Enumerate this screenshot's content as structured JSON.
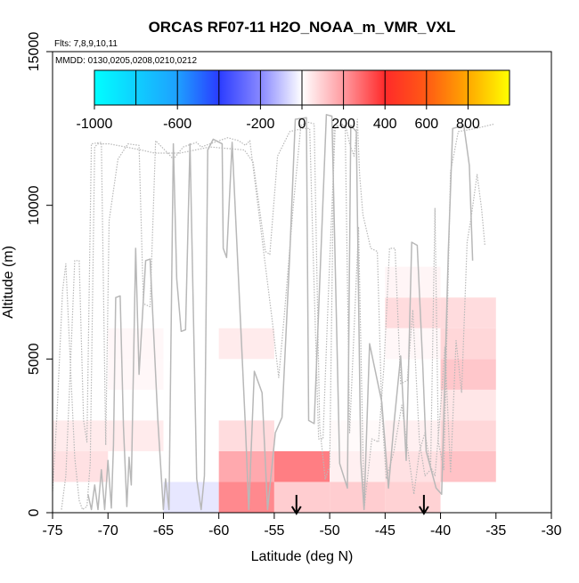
{
  "chart_data": {
    "type": "heatmap",
    "title": "ORCAS RF07-11 H2O_NOAA_m_VMR_VXL",
    "annotations": {
      "flights": "Flts: 7,8,9,10,11",
      "dates": "MMDD: 0130,0205,0208,0210,0212"
    },
    "xlabel": "Latitude (deg N)",
    "ylabel": "Altitude (m)",
    "xlim": [
      -75,
      -30
    ],
    "ylim": [
      0,
      15000
    ],
    "x_ticks": [
      -75,
      -70,
      -65,
      -60,
      -55,
      -50,
      -45,
      -40,
      -35,
      -30
    ],
    "x_tick_labels": [
      "-75",
      "-70",
      "-65",
      "-60",
      "-55",
      "-50",
      "-45",
      "-40",
      "-35",
      "-30"
    ],
    "y_ticks": [
      0,
      5000,
      10000,
      15000
    ],
    "y_tick_labels": [
      "0",
      "5000",
      "10000",
      "15000"
    ],
    "colorbar": {
      "min": -1000,
      "max": 1000,
      "tick_values": [
        -1000,
        -600,
        -200,
        0,
        200,
        400,
        600,
        800
      ],
      "tick_labels": [
        "-1000",
        "-600",
        "-200",
        "0",
        "200",
        "400",
        "600",
        "800"
      ],
      "divisions": [
        -800,
        -600,
        -400,
        -200,
        0,
        200,
        400,
        600,
        800
      ],
      "stops": [
        {
          "v": -1000,
          "c": "#00ffff"
        },
        {
          "v": -600,
          "c": "#1ea0ff"
        },
        {
          "v": -400,
          "c": "#2a3cff"
        },
        {
          "v": -200,
          "c": "#8888ff"
        },
        {
          "v": 0,
          "c": "#ffffff"
        },
        {
          "v": 200,
          "c": "#ff9aa0"
        },
        {
          "v": 400,
          "c": "#ff2a2a"
        },
        {
          "v": 600,
          "c": "#ff5a14"
        },
        {
          "v": 800,
          "c": "#ffa800"
        },
        {
          "v": 1000,
          "c": "#ffff00"
        }
      ]
    },
    "cells": [
      {
        "x0": -75,
        "x1": -70,
        "y0": 1000,
        "y1": 2000,
        "v": 60
      },
      {
        "x0": -75,
        "x1": -70,
        "y0": 2000,
        "y1": 3000,
        "v": 40
      },
      {
        "x0": -70,
        "x1": -65,
        "y0": 2000,
        "y1": 3000,
        "v": 40
      },
      {
        "x0": -70,
        "x1": -65,
        "y0": 4000,
        "y1": 5000,
        "v": 15
      },
      {
        "x0": -70,
        "x1": -65,
        "y0": 5000,
        "y1": 6000,
        "v": 15
      },
      {
        "x0": -65,
        "x1": -60,
        "y0": 0,
        "y1": 1000,
        "v": -40
      },
      {
        "x0": -60,
        "x1": -55,
        "y0": 0,
        "y1": 1000,
        "v": 230
      },
      {
        "x0": -60,
        "x1": -55,
        "y0": 1000,
        "y1": 2000,
        "v": 170
      },
      {
        "x0": -60,
        "x1": -55,
        "y0": 2000,
        "y1": 3000,
        "v": 70
      },
      {
        "x0": -60,
        "x1": -55,
        "y0": 5000,
        "y1": 6000,
        "v": 40
      },
      {
        "x0": -55,
        "x1": -50,
        "y0": 1000,
        "y1": 2000,
        "v": 250
      },
      {
        "x0": -55,
        "x1": -50,
        "y0": 0,
        "y1": 1000,
        "v": 100
      },
      {
        "x0": -50,
        "x1": -45,
        "y0": 0,
        "y1": 1000,
        "v": 100
      },
      {
        "x0": -50,
        "x1": -45,
        "y0": 1000,
        "y1": 2000,
        "v": 30
      },
      {
        "x0": -50,
        "x1": -45,
        "y0": 2000,
        "y1": 3000,
        "v": 10
      },
      {
        "x0": -45,
        "x1": -40,
        "y0": 0,
        "y1": 1000,
        "v": 90
      },
      {
        "x0": -45,
        "x1": -40,
        "y0": 1000,
        "y1": 2000,
        "v": 60
      },
      {
        "x0": -45,
        "x1": -40,
        "y0": 2000,
        "y1": 3000,
        "v": 30
      },
      {
        "x0": -45,
        "x1": -40,
        "y0": 6000,
        "y1": 7000,
        "v": 70
      },
      {
        "x0": -45,
        "x1": -40,
        "y0": 7000,
        "y1": 8000,
        "v": 20
      },
      {
        "x0": -45,
        "x1": -40,
        "y0": 5000,
        "y1": 6000,
        "v": 15
      },
      {
        "x0": -40,
        "x1": -35,
        "y0": 1000,
        "y1": 2000,
        "v": 120
      },
      {
        "x0": -40,
        "x1": -35,
        "y0": 2000,
        "y1": 3000,
        "v": 80
      },
      {
        "x0": -40,
        "x1": -35,
        "y0": 3000,
        "y1": 4000,
        "v": 50
      },
      {
        "x0": -40,
        "x1": -35,
        "y0": 4000,
        "y1": 5000,
        "v": 110
      },
      {
        "x0": -40,
        "x1": -35,
        "y0": 5000,
        "y1": 6000,
        "v": 80
      },
      {
        "x0": -40,
        "x1": -35,
        "y0": 6000,
        "y1": 7000,
        "v": 70
      }
    ],
    "arrows_x": [
      -53,
      -41.5
    ],
    "tracks": [
      [
        [
          -71.8,
          600
        ],
        [
          -71.5,
          100
        ],
        [
          -71.2,
          900
        ],
        [
          -70.9,
          100
        ],
        [
          -70.6,
          1400
        ],
        [
          -70.3,
          100
        ],
        [
          -70,
          1700
        ],
        [
          -69.7,
          150
        ],
        [
          -69.5,
          2200
        ],
        [
          -69.3,
          7000
        ],
        [
          -68.9,
          7050
        ],
        [
          -68.6,
          2800
        ],
        [
          -68.3,
          200
        ],
        [
          -68.1,
          1800
        ],
        [
          -67.9,
          900
        ],
        [
          -67.5,
          8600
        ],
        [
          -67.2,
          4500
        ],
        [
          -66.6,
          8200
        ],
        [
          -66.2,
          8250
        ],
        [
          -65.5,
          3000
        ],
        [
          -65,
          100
        ],
        [
          -64.8,
          1100
        ],
        [
          -64.5,
          100
        ],
        [
          -64.1,
          12000
        ],
        [
          -63.8,
          7600
        ],
        [
          -63.4,
          5900
        ],
        [
          -63,
          5950
        ],
        [
          -62.6,
          12000
        ],
        [
          -62,
          1100
        ],
        [
          -61.6,
          100
        ],
        [
          -61.3,
          1200
        ],
        [
          -61,
          11800
        ],
        [
          -60.5,
          12150
        ],
        [
          -59.7,
          12000
        ],
        [
          -59.6,
          8600
        ],
        [
          -59.3,
          8300
        ],
        [
          -58.8,
          12050
        ],
        [
          -57.6,
          2800
        ],
        [
          -57.3,
          100
        ],
        [
          -56.8,
          4600
        ],
        [
          -56.1,
          3900
        ],
        [
          -55.6,
          100
        ],
        [
          -54.9,
          2600
        ],
        [
          -54.3,
          3100
        ],
        [
          -53.6,
          8400
        ],
        [
          -53.1,
          12800
        ],
        [
          -52.1,
          12850
        ],
        [
          -51.9,
          3000
        ],
        [
          -51.4,
          2900
        ],
        [
          -50.3,
          12950
        ],
        [
          -49.8,
          12900
        ],
        [
          -49.1,
          1600
        ],
        [
          -48.4,
          800
        ],
        [
          -48.1,
          12600
        ],
        [
          -47.6,
          12400
        ],
        [
          -47.2,
          1700
        ],
        [
          -46.9,
          100
        ],
        [
          -46.4,
          5500
        ],
        [
          -45.3,
          3600
        ],
        [
          -44.7,
          800
        ],
        [
          -44.2,
          2900
        ],
        [
          -43.6,
          5100
        ],
        [
          -43.1,
          1700
        ],
        [
          -42.6,
          8800
        ],
        [
          -42.1,
          8700
        ],
        [
          -41.6,
          4800
        ],
        [
          -41.3,
          2000
        ],
        [
          -40.4,
          800
        ],
        [
          -39.9,
          600
        ],
        [
          -39.3,
          8500
        ],
        [
          -38.9,
          12500
        ],
        [
          -37.9,
          12600
        ],
        [
          -37.4,
          11300
        ],
        [
          -37.1,
          8200
        ]
      ],
      [
        [
          -74.2,
          100
        ],
        [
          -73.8,
          1200
        ],
        [
          -73.5,
          3800
        ],
        [
          -73,
          8200
        ],
        [
          -72.6,
          8200
        ],
        [
          -72.2,
          3000
        ],
        [
          -71.9,
          2300
        ],
        [
          -71.5,
          12000
        ],
        [
          -70.6,
          12050
        ],
        [
          -70.2,
          2200
        ],
        [
          -69.9,
          9500
        ],
        [
          -69.1,
          11500
        ],
        [
          -68.2,
          12000
        ],
        [
          -67.2,
          11950
        ],
        [
          -66.8,
          6800
        ],
        [
          -66.2,
          6700
        ],
        [
          -65.7,
          12100
        ],
        [
          -64.6,
          11700
        ],
        [
          -64.1,
          11500
        ],
        [
          -63.2,
          11900
        ],
        [
          -62,
          12050
        ],
        [
          -61.6,
          11900
        ],
        [
          -60.4,
          12050
        ],
        [
          -59.2,
          12200
        ],
        [
          -58.2,
          12100
        ],
        [
          -57.6,
          11950
        ],
        [
          -57.2,
          12100
        ],
        [
          -55.2,
          6300
        ],
        [
          -54.6,
          4400
        ],
        [
          -54.1,
          6400
        ],
        [
          -53.3,
          9900
        ],
        [
          -52.6,
          12600
        ],
        [
          -51.9,
          12700
        ],
        [
          -51.4,
          12650
        ],
        [
          -50.9,
          2800
        ],
        [
          -50.4,
          1100
        ],
        [
          -50,
          1500
        ],
        [
          -49.6,
          12600
        ],
        [
          -48.6,
          12600
        ],
        [
          -48.2,
          2600
        ],
        [
          -47.4,
          9300
        ],
        [
          -46.9,
          100
        ],
        [
          -46.2,
          2400
        ],
        [
          -45.6,
          2300
        ],
        [
          -45.1,
          4800
        ],
        [
          -44.6,
          8600
        ],
        [
          -44.1,
          8600
        ],
        [
          -43.6,
          4200
        ],
        [
          -43,
          4300
        ],
        [
          -42.5,
          6600
        ],
        [
          -41.9,
          2300
        ],
        [
          -41.4,
          1200
        ],
        [
          -40.9,
          1400
        ],
        [
          -40.5,
          9900
        ],
        [
          -40.2,
          2300
        ],
        [
          -39.7,
          1400
        ],
        [
          -39.1,
          11100
        ],
        [
          -38.4,
          12400
        ],
        [
          -36.8,
          12500
        ],
        [
          -35.1,
          12650
        ]
      ],
      [
        [
          -75,
          700
        ],
        [
          -74.6,
          3200
        ],
        [
          -74.1,
          7200
        ],
        [
          -73.8,
          8100
        ],
        [
          -73.4,
          4900
        ],
        [
          -73,
          1800
        ],
        [
          -72.6,
          400
        ],
        [
          -72.3,
          100
        ],
        [
          -71.9,
          200
        ],
        [
          -71.6,
          1600
        ],
        [
          -71.2,
          11900
        ],
        [
          -70.9,
          12000
        ],
        [
          -69.9,
          12000
        ],
        [
          -67,
          11800
        ],
        [
          -65.8,
          11700
        ],
        [
          -63.5,
          11700
        ],
        [
          -60.8,
          11900
        ],
        [
          -57.7,
          11800
        ],
        [
          -56.9,
          11400
        ],
        [
          -55.8,
          8500
        ],
        [
          -55.4,
          8400
        ],
        [
          -54.7,
          11600
        ],
        [
          -53.6,
          12400
        ],
        [
          -52.4,
          12500
        ],
        [
          -51.8,
          12500
        ],
        [
          -51.5,
          8600
        ],
        [
          -51,
          2400
        ],
        [
          -50.6,
          2400
        ],
        [
          -50.1,
          7300
        ],
        [
          -49.5,
          12500
        ],
        [
          -48.9,
          12650
        ],
        [
          -48.5,
          12500
        ],
        [
          -48.2,
          12000
        ],
        [
          -47.8,
          11600
        ],
        [
          -47.6,
          12300
        ],
        [
          -47.5,
          12800
        ],
        [
          -47.3,
          11000
        ],
        [
          -47,
          9700
        ],
        [
          -46.3,
          8600
        ],
        [
          -45.7,
          8500
        ],
        [
          -45.3,
          3300
        ],
        [
          -44.9,
          1100
        ],
        [
          -44.2,
          2000
        ],
        [
          -43.5,
          3500
        ],
        [
          -42.9,
          1900
        ],
        [
          -42.4,
          600
        ],
        [
          -41.9,
          2000
        ],
        [
          -41.4,
          2600
        ],
        [
          -40.9,
          1500
        ],
        [
          -40.5,
          1200
        ],
        [
          -40.1,
          2900
        ],
        [
          -39.6,
          5400
        ],
        [
          -39.1,
          1300
        ],
        [
          -38.6,
          5600
        ],
        [
          -38.1,
          3900
        ],
        [
          -37.6,
          8800
        ],
        [
          -37.2,
          9700
        ],
        [
          -36.7,
          11000
        ],
        [
          -36.3,
          9900
        ],
        [
          -36,
          8700
        ]
      ]
    ]
  }
}
